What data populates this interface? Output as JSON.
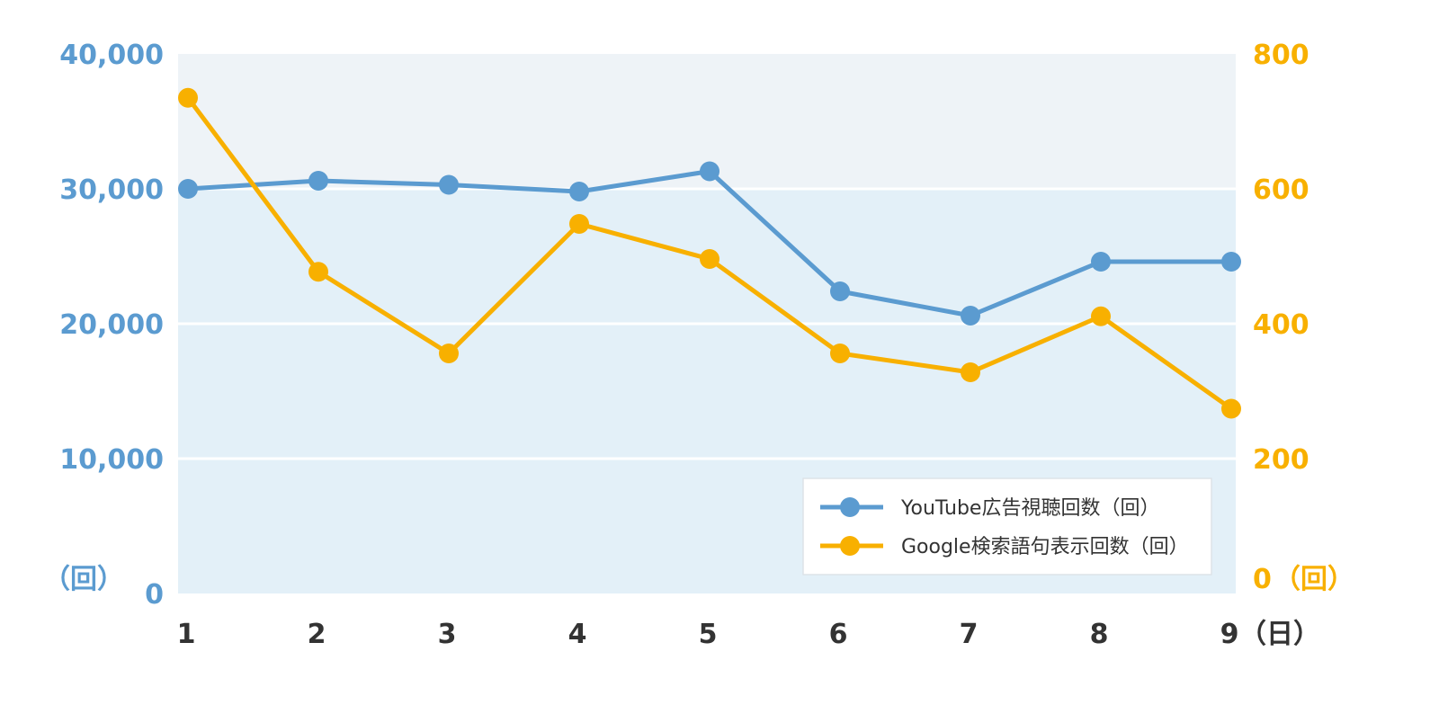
{
  "colors": {
    "series1": "#5b9bd0",
    "series2": "#f8b000",
    "plot_top_band": "#eef3f7",
    "plot_bottom_band": "#e3f0f8",
    "x_tick_text": "#333333"
  },
  "chart_data": {
    "type": "line",
    "x": [
      1,
      2,
      3,
      4,
      5,
      6,
      7,
      8,
      9
    ],
    "x_tick_labels": [
      "1",
      "2",
      "3",
      "4",
      "5",
      "6",
      "7",
      "8",
      "9"
    ],
    "x_unit": "（日）",
    "y_left": {
      "range": [
        0,
        40000
      ],
      "ticks": [
        0,
        10000,
        20000,
        30000,
        40000
      ],
      "tick_labels": [
        "0",
        "10,000",
        "20,000",
        "30,000",
        "40,000"
      ],
      "unit": "（回）"
    },
    "y_right": {
      "range": [
        0,
        800
      ],
      "ticks": [
        0,
        200,
        400,
        600,
        800
      ],
      "tick_labels": [
        "0",
        "200",
        "400",
        "600",
        "800"
      ],
      "unit": "（回）"
    },
    "series": [
      {
        "name": "YouTube広告視聴回数（回）",
        "axis": "left",
        "values": [
          30000,
          30600,
          30300,
          29800,
          31300,
          22400,
          20600,
          24600,
          24600
        ]
      },
      {
        "name": "Google検索語句表示回数（回）",
        "axis": "right",
        "values": [
          735,
          477,
          356,
          548,
          496,
          356,
          328,
          411,
          274
        ]
      }
    ],
    "grid": true,
    "legend_position": "bottom-right"
  }
}
